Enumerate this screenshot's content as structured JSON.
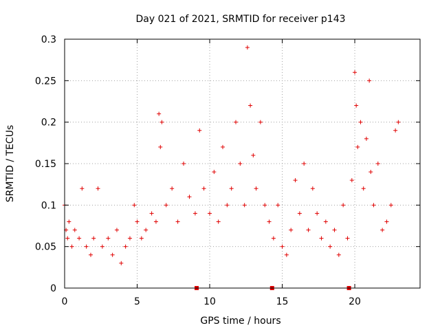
{
  "chart_data": {
    "type": "scatter",
    "title": "Day 021 of 2021, SRMTID for receiver p143",
    "xlabel": "GPS time / hours",
    "ylabel": "SRMTID / TECUs",
    "xlim": [
      0,
      24.5
    ],
    "ylim": [
      0,
      0.3
    ],
    "grid": true,
    "marker": "+",
    "color": "#e00000",
    "xticks": [
      0,
      5,
      10,
      15,
      20
    ],
    "xtick_labels": [
      "0",
      "5",
      "10",
      "15",
      "20"
    ],
    "yticks": [
      0,
      0.05,
      0.1,
      0.15,
      0.2,
      0.25,
      0.3
    ],
    "ytick_labels": [
      "0",
      "0.05",
      "0.1",
      "0.15",
      "0.2",
      "0.25",
      "0.3"
    ],
    "zero_markers_x": [
      9.1,
      14.3,
      19.6
    ],
    "series": [
      {
        "name": "SRMTID",
        "x": [
          0.0,
          0.1,
          0.2,
          0.3,
          0.5,
          0.7,
          1.0,
          1.2,
          1.5,
          1.8,
          2.0,
          2.3,
          2.6,
          3.0,
          3.3,
          3.6,
          3.9,
          4.2,
          4.5,
          4.8,
          5.0,
          5.3,
          5.6,
          6.0,
          6.3,
          6.5,
          6.6,
          6.7,
          7.0,
          7.4,
          7.8,
          8.2,
          8.6,
          9.0,
          9.3,
          9.6,
          10.0,
          10.3,
          10.6,
          10.9,
          11.2,
          11.5,
          11.8,
          12.1,
          12.4,
          12.6,
          12.8,
          13.0,
          13.2,
          13.5,
          13.8,
          14.1,
          14.4,
          14.7,
          15.0,
          15.3,
          15.6,
          15.9,
          16.2,
          16.5,
          16.8,
          17.1,
          17.4,
          17.7,
          18.0,
          18.3,
          18.6,
          18.9,
          19.2,
          19.5,
          19.8,
          20.0,
          20.1,
          20.2,
          20.4,
          20.6,
          20.8,
          21.0,
          21.1,
          21.3,
          21.6,
          21.9,
          22.2,
          22.5,
          22.8,
          23.0
        ],
        "y": [
          0.1,
          0.07,
          0.06,
          0.08,
          0.05,
          0.07,
          0.06,
          0.12,
          0.05,
          0.04,
          0.06,
          0.12,
          0.05,
          0.06,
          0.04,
          0.07,
          0.03,
          0.05,
          0.06,
          0.1,
          0.08,
          0.06,
          0.07,
          0.09,
          0.08,
          0.21,
          0.17,
          0.2,
          0.1,
          0.12,
          0.08,
          0.15,
          0.11,
          0.09,
          0.19,
          0.12,
          0.09,
          0.14,
          0.08,
          0.17,
          0.1,
          0.12,
          0.2,
          0.15,
          0.1,
          0.29,
          0.22,
          0.16,
          0.12,
          0.2,
          0.1,
          0.08,
          0.06,
          0.1,
          0.05,
          0.04,
          0.07,
          0.13,
          0.09,
          0.15,
          0.07,
          0.12,
          0.09,
          0.06,
          0.08,
          0.05,
          0.07,
          0.04,
          0.1,
          0.06,
          0.13,
          0.26,
          0.22,
          0.17,
          0.2,
          0.12,
          0.18,
          0.25,
          0.14,
          0.1,
          0.15,
          0.07,
          0.08,
          0.1,
          0.19,
          0.2
        ]
      }
    ]
  }
}
